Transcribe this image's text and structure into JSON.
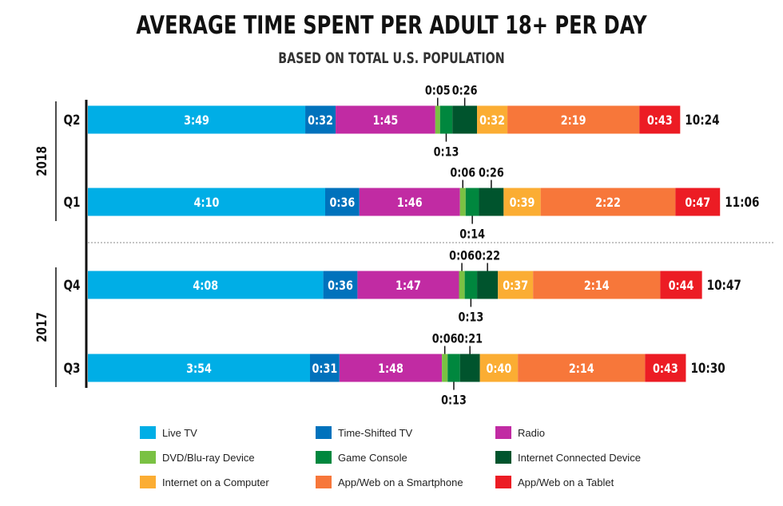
{
  "chart_data": {
    "type": "bar",
    "orientation": "horizontal",
    "stacked": true,
    "title": "AVERAGE TIME SPENT PER ADULT 18+ PER DAY",
    "subtitle": "BASED ON TOTAL U.S. POPULATION",
    "groups": [
      {
        "year": "2018",
        "quarters": [
          "Q2",
          "Q1"
        ]
      },
      {
        "year": "2017",
        "quarters": [
          "Q4",
          "Q3"
        ]
      }
    ],
    "categories": [
      "Q2",
      "Q1",
      "Q4",
      "Q3"
    ],
    "totals": [
      "10:24",
      "11:06",
      "10:47",
      "10:30"
    ],
    "series": [
      {
        "name": "Live TV",
        "color": "#00aee6",
        "values": [
          "3:49",
          "4:10",
          "4:08",
          "3:54"
        ]
      },
      {
        "name": "Time-Shifted TV",
        "color": "#0072bc",
        "values": [
          "0:32",
          "0:36",
          "0:36",
          "0:31"
        ]
      },
      {
        "name": "Radio",
        "color": "#c12ba3",
        "values": [
          "1:45",
          "1:46",
          "1:47",
          "1:48"
        ]
      },
      {
        "name": "DVD/Blu-ray Device",
        "color": "#7ac143",
        "values": [
          "0:05",
          "0:06",
          "0:06",
          "0:06"
        ]
      },
      {
        "name": "Game Console",
        "color": "#00873e",
        "values": [
          "0:13",
          "0:14",
          "0:13",
          "0:13"
        ]
      },
      {
        "name": "Internet Connected Device",
        "color": "#00542d",
        "values": [
          "0:26",
          "0:26",
          "0:22",
          "0:21"
        ]
      },
      {
        "name": "Internet on a Computer",
        "color": "#fbad33",
        "values": [
          "0:32",
          "0:39",
          "0:37",
          "0:40"
        ]
      },
      {
        "name": "App/Web on a Smartphone",
        "color": "#f7773a",
        "values": [
          "2:19",
          "2:22",
          "2:14",
          "2:14"
        ]
      },
      {
        "name": "App/Web on a Tablet",
        "color": "#ec1c24",
        "values": [
          "0:43",
          "0:47",
          "0:44",
          "0:43"
        ]
      }
    ],
    "unit": "h:mm",
    "legend_position": "bottom",
    "grid": false
  }
}
